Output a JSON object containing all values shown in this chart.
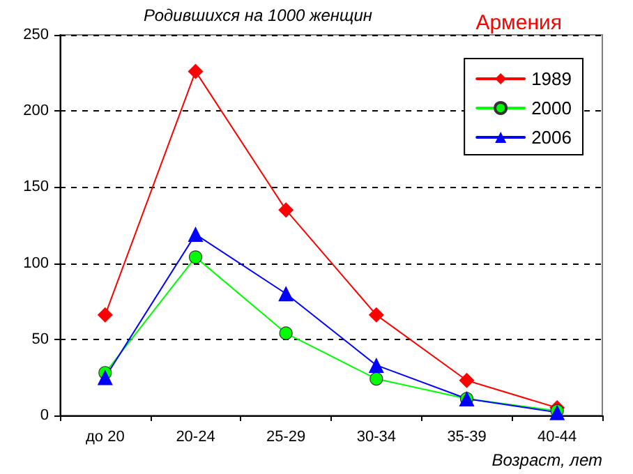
{
  "chart_data": {
    "type": "line",
    "title": "Армения",
    "ylabel": "Родившихся на 1000 женщин",
    "xlabel": "Возраст, лет",
    "categories": [
      "до 20",
      "20-24",
      "25-29",
      "30-34",
      "35-39",
      "40-44"
    ],
    "series": [
      {
        "name": "1989",
        "color": "#ff0000",
        "marker": "diamond",
        "values": [
          66,
          226,
          135,
          66,
          23,
          5
        ]
      },
      {
        "name": "2000",
        "color": "#00ff00",
        "marker": "circle",
        "values": [
          28,
          104,
          54,
          24,
          11,
          3
        ]
      },
      {
        "name": "2006",
        "color": "#0000ff",
        "marker": "triangle",
        "values": [
          25,
          119,
          80,
          33,
          11,
          2
        ]
      }
    ],
    "ylim": [
      0,
      250
    ],
    "yticks": [
      0,
      50,
      100,
      150,
      200,
      250
    ],
    "grid": "y",
    "legend": "top right",
    "line_style": "solid"
  }
}
